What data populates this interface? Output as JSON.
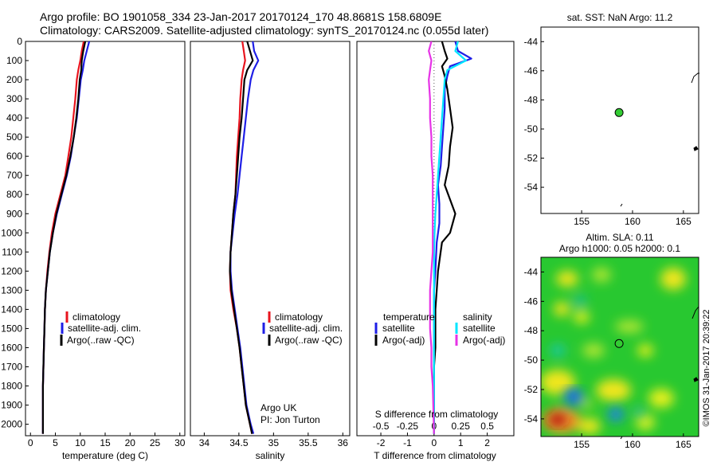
{
  "header": {
    "line1": "Argo profile: BO 1901058_334 23-Jan-2017 20170124_170 48.8681S 158.6809E",
    "line2": "Climatology: CARS2009. Satellite-adjusted climatology: synTS_20170124.nc (0.055d later)"
  },
  "colors": {
    "red": "#e8141e",
    "blue": "#1e1ee6",
    "black": "#000000",
    "cyan": "#00e6ff",
    "magenta": "#e632e6",
    "ocean_green": "#22c832",
    "float_marker": "#33cc33"
  },
  "chart_data": [
    {
      "id": "temperature",
      "type": "line",
      "xlabel": "temperature (deg C)",
      "xlim": [
        -1,
        31
      ],
      "xticks": [
        0,
        5,
        10,
        15,
        20,
        25,
        30
      ],
      "ylim": [
        0,
        2060
      ],
      "yticks": [
        0,
        100,
        200,
        300,
        400,
        500,
        600,
        700,
        800,
        900,
        1000,
        1100,
        1200,
        1300,
        1400,
        1500,
        1600,
        1700,
        1800,
        1900,
        2000
      ],
      "legend": [
        "climatology",
        "satellite-adj. clim.",
        "Argo(..raw -QC)"
      ],
      "series": [
        {
          "name": "climatology",
          "color": "red",
          "x": [
            10.7,
            10.3,
            10.0,
            9.6,
            9.3,
            9.0,
            8.6,
            8.2,
            7.6,
            7.0,
            6.0,
            5.0,
            4.3,
            3.8,
            3.4,
            3.1,
            2.9,
            2.8,
            2.7,
            2.6,
            2.5,
            2.5
          ],
          "y": [
            0,
            50,
            100,
            150,
            200,
            300,
            400,
            500,
            600,
            700,
            800,
            900,
            1000,
            1100,
            1200,
            1300,
            1400,
            1500,
            1600,
            1700,
            1800,
            2050
          ]
        },
        {
          "name": "satellite-adj. clim.",
          "color": "blue",
          "x": [
            11.8,
            11.3,
            10.8,
            10.5,
            10.1,
            9.7,
            9.3,
            8.7,
            8.1,
            7.3,
            6.3,
            5.3,
            4.5,
            3.9,
            3.5,
            3.1,
            2.9,
            2.8,
            2.7,
            2.6,
            2.5,
            2.5
          ],
          "y": [
            0,
            50,
            100,
            150,
            200,
            300,
            400,
            500,
            600,
            700,
            800,
            900,
            1000,
            1100,
            1200,
            1300,
            1400,
            1500,
            1600,
            1700,
            1800,
            2050
          ]
        },
        {
          "name": "Argo(..raw -QC)",
          "color": "black",
          "x": [
            11.0,
            10.6,
            10.3,
            10.2,
            9.9,
            9.6,
            9.2,
            8.7,
            8.0,
            7.2,
            6.2,
            5.2,
            4.5,
            3.9,
            3.5,
            3.1,
            2.9,
            2.8,
            2.7,
            2.6,
            2.5,
            2.5
          ],
          "y": [
            0,
            50,
            100,
            150,
            200,
            300,
            400,
            500,
            600,
            700,
            800,
            900,
            1000,
            1100,
            1200,
            1300,
            1400,
            1500,
            1600,
            1700,
            1800,
            2050
          ]
        }
      ]
    },
    {
      "id": "salinity",
      "type": "line",
      "xlabel": "salinity",
      "xlim": [
        33.8,
        36.1
      ],
      "xticks": [
        34,
        34.5,
        35,
        35.5,
        36
      ],
      "xticklabels": [
        "34",
        "34.5",
        "35",
        "35.5",
        "36"
      ],
      "ylim": [
        0,
        2060
      ],
      "legend": [
        "climatology",
        "satellite-adj. clim.",
        "Argo(..raw -QC)"
      ],
      "annotation": [
        "Argo UK",
        "PI: Jon Turton"
      ],
      "series": [
        {
          "name": "climatology",
          "color": "red",
          "x": [
            34.55,
            34.57,
            34.59,
            34.56,
            34.54,
            34.52,
            34.51,
            34.49,
            34.47,
            34.46,
            34.45,
            34.42,
            34.4,
            34.38,
            34.37,
            34.38,
            34.42,
            34.47,
            34.51,
            34.54,
            34.57,
            34.6,
            34.63,
            34.66,
            34.69
          ],
          "y": [
            0,
            50,
            100,
            150,
            200,
            300,
            400,
            500,
            600,
            700,
            800,
            900,
            1000,
            1100,
            1200,
            1300,
            1400,
            1500,
            1600,
            1700,
            1800,
            1900,
            1950,
            2000,
            2050
          ]
        },
        {
          "name": "satellite-adj. clim.",
          "color": "blue",
          "x": [
            34.7,
            34.72,
            34.78,
            34.71,
            34.67,
            34.63,
            34.6,
            34.57,
            34.54,
            34.51,
            34.48,
            34.44,
            34.41,
            34.38,
            34.38,
            34.4,
            34.44,
            34.48,
            34.52,
            34.55,
            34.58,
            34.61,
            34.64,
            34.67,
            34.71
          ],
          "y": [
            0,
            50,
            100,
            150,
            200,
            300,
            400,
            500,
            600,
            700,
            800,
            900,
            1000,
            1100,
            1200,
            1300,
            1400,
            1500,
            1600,
            1700,
            1800,
            1900,
            1950,
            2000,
            2050
          ]
        },
        {
          "name": "Argo(..raw -QC)",
          "color": "black",
          "x": [
            34.62,
            34.66,
            34.7,
            34.62,
            34.58,
            34.56,
            34.54,
            34.51,
            34.49,
            34.47,
            34.45,
            34.42,
            34.4,
            34.38,
            34.37,
            34.39,
            34.43,
            34.47,
            34.51,
            34.54,
            34.57,
            34.6,
            34.63,
            34.66,
            34.69
          ],
          "y": [
            0,
            50,
            100,
            150,
            200,
            300,
            400,
            500,
            600,
            700,
            800,
            900,
            1000,
            1100,
            1200,
            1300,
            1400,
            1500,
            1600,
            1700,
            1800,
            1900,
            1950,
            2000,
            2050
          ]
        }
      ]
    },
    {
      "id": "differences",
      "type": "line",
      "xlabel": "T difference from climatology",
      "xlabel2": "S difference from climatology",
      "xlim": [
        -2.9,
        3.0
      ],
      "xticks": [
        -2,
        -1,
        0,
        1,
        2
      ],
      "xticklabels": [
        "-2",
        "-1",
        "0",
        "1",
        "2"
      ],
      "s_ticks": [
        -0.5,
        -0.25,
        0,
        0.25,
        0.5
      ],
      "s_ticklabels": [
        "-0.5",
        "-0.25",
        "0",
        "0.25",
        "0.5"
      ],
      "ylim": [
        0,
        2060
      ],
      "legend_temperature_title": "temperature",
      "legend_temperature": [
        "satellite",
        "Argo(-adj)"
      ],
      "legend_salinity_title": "salinity",
      "legend_salinity": [
        "satellite",
        "Argo(-adj)"
      ],
      "series": [
        {
          "name": "T satellite",
          "color": "blue",
          "x": [
            0.8,
            0.9,
            1.4,
            0.6,
            0.5,
            0.4,
            0.4,
            0.35,
            0.3,
            0.25,
            0.15,
            0.2,
            0.2,
            0.1,
            0.05,
            0.0,
            0.0,
            0.0,
            0.0,
            0.0,
            0.0,
            0.0
          ],
          "y": [
            0,
            50,
            90,
            130,
            180,
            250,
            350,
            450,
            550,
            650,
            750,
            850,
            950,
            1050,
            1200,
            1300,
            1400,
            1500,
            1600,
            1700,
            1800,
            2050
          ]
        },
        {
          "name": "T Argo(-adj)",
          "color": "black",
          "x": [
            0.3,
            0.4,
            0.5,
            0.3,
            0.4,
            0.5,
            0.6,
            0.7,
            0.6,
            0.55,
            0.4,
            0.8,
            0.6,
            0.3,
            0.15,
            0.1,
            0.05,
            0.05,
            0.05,
            0.0,
            0.0,
            0.0
          ],
          "y": [
            0,
            50,
            90,
            130,
            180,
            250,
            350,
            450,
            550,
            650,
            750,
            900,
            1000,
            1050,
            1200,
            1300,
            1400,
            1500,
            1600,
            1700,
            1800,
            2050
          ]
        },
        {
          "name": "S satellite",
          "color": "cyan",
          "x": [
            0.9,
            0.8,
            1.2,
            0.5,
            0.4,
            0.35,
            0.3,
            0.25,
            0.2,
            0.15,
            0.1,
            0.05,
            0.02,
            0.0,
            0.0,
            0.0,
            0.0,
            0.0,
            0.0,
            0.0,
            0.0,
            0.0
          ],
          "y": [
            0,
            50,
            100,
            150,
            200,
            300,
            400,
            500,
            600,
            700,
            800,
            900,
            1000,
            1100,
            1200,
            1300,
            1400,
            1500,
            1600,
            1700,
            1800,
            2050
          ]
        },
        {
          "name": "S Argo(-adj)",
          "color": "magenta",
          "x": [
            -0.1,
            -0.2,
            -0.1,
            -0.15,
            -0.2,
            -0.15,
            -0.15,
            -0.1,
            -0.1,
            -0.05,
            -0.05,
            -0.05,
            -0.05,
            -0.05,
            -0.1,
            -0.15,
            -0.15,
            -0.15,
            -0.1,
            -0.1,
            -0.05,
            0.0
          ],
          "y": [
            0,
            50,
            100,
            150,
            200,
            300,
            400,
            500,
            600,
            700,
            800,
            900,
            1000,
            1100,
            1200,
            1300,
            1400,
            1500,
            1600,
            1700,
            1800,
            2050
          ]
        }
      ]
    }
  ],
  "maps": {
    "top_title": "sat. SST: NaN Argo: 11.2",
    "bottom_title_line1": "Altim. SLA: 0.11",
    "bottom_title_line2": "Argo h1000: 0.05 h2000: 0.1",
    "lon_ticks": [
      155,
      160,
      165
    ],
    "lon_ticklabels": [
      "155",
      "160",
      "165"
    ],
    "lat_ticks": [
      -44,
      -46,
      -48,
      -50,
      -52,
      -54
    ],
    "lat_ticklabels": [
      "-44",
      "-46",
      "-48",
      "-50",
      "-52",
      "-54"
    ],
    "lon_range": [
      151.0,
      166.5
    ],
    "lat_range": [
      -55.2,
      -43.0
    ],
    "float_position": {
      "lon": 158.68,
      "lat": -48.87
    }
  },
  "credit": "©IMOS 31-Jan-2017 20:39:22"
}
